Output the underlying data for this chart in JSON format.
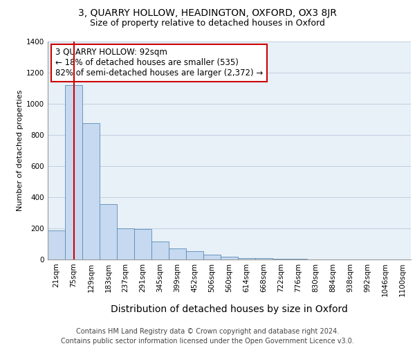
{
  "title1": "3, QUARRY HOLLOW, HEADINGTON, OXFORD, OX3 8JR",
  "title2": "Size of property relative to detached houses in Oxford",
  "xlabel": "Distribution of detached houses by size in Oxford",
  "ylabel": "Number of detached properties",
  "footnote": "Contains HM Land Registry data © Crown copyright and database right 2024.\nContains public sector information licensed under the Open Government Licence v3.0.",
  "categories": [
    "21sqm",
    "75sqm",
    "129sqm",
    "183sqm",
    "237sqm",
    "291sqm",
    "345sqm",
    "399sqm",
    "452sqm",
    "506sqm",
    "560sqm",
    "614sqm",
    "668sqm",
    "722sqm",
    "776sqm",
    "830sqm",
    "884sqm",
    "938sqm",
    "992sqm",
    "1046sqm",
    "1100sqm"
  ],
  "values": [
    185,
    1120,
    875,
    355,
    200,
    195,
    115,
    70,
    55,
    30,
    20,
    10,
    10,
    5,
    5,
    0,
    0,
    0,
    0,
    0,
    0
  ],
  "bar_color": "#c6d9f0",
  "bar_edge_color": "#5a8ab5",
  "grid_color": "#c0d0e0",
  "background_color": "#e8f0f8",
  "vline_color": "#cc0000",
  "annotation_text": "3 QUARRY HOLLOW: 92sqm\n← 18% of detached houses are smaller (535)\n82% of semi-detached houses are larger (2,372) →",
  "annotation_box_color": "#ffffff",
  "annotation_border_color": "#cc0000",
  "ylim": [
    0,
    1400
  ],
  "yticks": [
    0,
    200,
    400,
    600,
    800,
    1000,
    1200,
    1400
  ],
  "title1_fontsize": 10,
  "title2_fontsize": 9,
  "xlabel_fontsize": 10,
  "ylabel_fontsize": 8,
  "tick_fontsize": 7.5,
  "annotation_fontsize": 8.5,
  "footnote_fontsize": 7
}
